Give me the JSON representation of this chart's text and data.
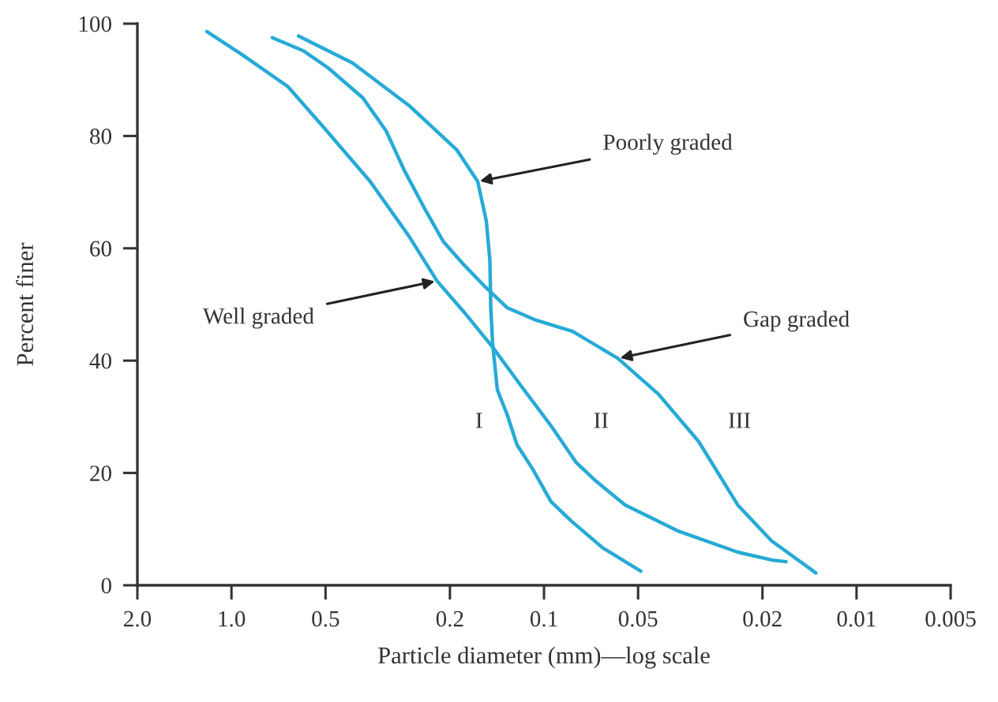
{
  "chart_data": {
    "type": "line",
    "xlabel": "Particle diameter (mm)—log scale",
    "ylabel": "Percent finer",
    "log": "x",
    "xlim": [
      2.0,
      0.005
    ],
    "xticks": [
      {
        "value": 2,
        "label": "2.0"
      },
      {
        "value": 1,
        "label": "1.0"
      },
      0.5,
      0.2,
      0.1,
      0.05,
      0.02,
      0.01,
      0.005
    ],
    "ylim": [
      0,
      100
    ],
    "yticks": [
      0,
      20,
      40,
      60,
      80,
      100
    ],
    "marker": "none",
    "line_style": "solid",
    "series": [
      {
        "name": "I",
        "color": "#27aad6",
        "x": [
          0.61,
          0.41,
          0.27,
          0.19,
          0.163,
          0.153,
          0.149,
          0.148,
          0.146,
          0.141,
          0.131,
          0.122,
          0.109,
          0.095,
          0.082,
          0.065,
          0.049
        ],
        "values": [
          97.8,
          93.0,
          85.4,
          77.5,
          71.9,
          64.9,
          57.9,
          49.4,
          43.0,
          34.8,
          30.3,
          25.0,
          20.8,
          14.9,
          11.5,
          6.7,
          2.5
        ]
      },
      {
        "name": "II",
        "color": "#27aad6",
        "x": [
          1.2,
          0.92,
          0.66,
          0.51,
          0.36,
          0.27,
          0.22,
          0.18,
          0.146,
          0.118,
          0.095,
          0.079,
          0.068,
          0.055,
          0.037,
          0.024,
          0.0187,
          0.0168
        ],
        "values": [
          98.6,
          94.4,
          88.8,
          81.7,
          71.9,
          62.1,
          54.2,
          48.6,
          42.4,
          35.4,
          28.4,
          21.9,
          18.5,
          14.3,
          9.6,
          5.9,
          4.5,
          4.2
        ]
      },
      {
        "name": "III",
        "color": "#27aad6",
        "x": [
          0.74,
          0.59,
          0.49,
          0.38,
          0.32,
          0.28,
          0.24,
          0.21,
          0.18,
          0.154,
          0.131,
          0.106,
          0.081,
          0.058,
          0.043,
          0.032,
          0.024,
          0.0187,
          0.0135
        ],
        "values": [
          97.5,
          95.2,
          92.1,
          86.8,
          80.9,
          73.9,
          66.9,
          61.2,
          57.0,
          53.1,
          49.4,
          47.2,
          45.2,
          40.4,
          34.0,
          25.6,
          14.3,
          7.9,
          2.2
        ]
      }
    ],
    "annotations": [
      {
        "text": "Poorly graded",
        "x": 0.163,
        "y": 71.9
      },
      {
        "text": "Well graded",
        "x": 0.22,
        "y": 54.2
      },
      {
        "text": "Gap graded",
        "x": 0.058,
        "y": 40.4
      }
    ]
  }
}
